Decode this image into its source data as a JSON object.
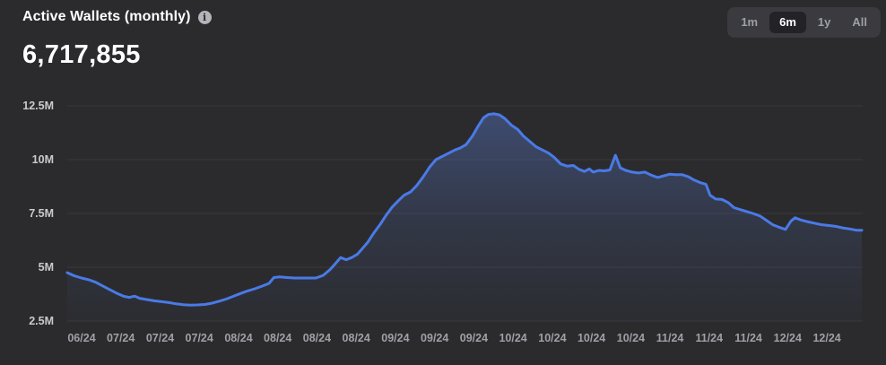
{
  "header": {
    "title": "Active Wallets (monthly)",
    "value": "6,717,855"
  },
  "range_selector": {
    "options": [
      {
        "label": "1m",
        "active": false
      },
      {
        "label": "6m",
        "active": true
      },
      {
        "label": "1y",
        "active": false
      },
      {
        "label": "All",
        "active": false
      }
    ]
  },
  "colors": {
    "background": "#2b2b2e",
    "line": "#4a7ae6",
    "fill_top": "rgba(86,118,196,0.45)",
    "fill_mid": "rgba(86,118,196,0.16)",
    "fill_bottom": "rgba(86,118,196,0.02)",
    "gridline": "#38383c",
    "y_label": "#cacace",
    "x_label": "#9fa0a6"
  },
  "chart_data": {
    "type": "area",
    "title": "Active Wallets (monthly)",
    "current_value": 6717855,
    "unit": "wallets",
    "grid": "horizontal",
    "legend": "none",
    "ylim_millions": [
      2.5,
      12.5
    ],
    "y_ticks_millions": [
      2.5,
      5,
      7.5,
      10,
      12.5
    ],
    "y_tick_labels": [
      "2.5M",
      "5M",
      "7.5M",
      "10M",
      "12.5M"
    ],
    "x_tick_labels": [
      "06/24",
      "07/24",
      "07/24",
      "07/24",
      "08/24",
      "08/24",
      "08/24",
      "08/24",
      "09/24",
      "09/24",
      "09/24",
      "10/24",
      "10/24",
      "10/24",
      "10/24",
      "11/24",
      "11/24",
      "11/24",
      "12/24",
      "12/24"
    ],
    "series": [
      {
        "name": "Active Wallets",
        "points_t_value_millions": [
          [
            0,
            4.75
          ],
          [
            0.009,
            4.6
          ],
          [
            0.018,
            4.5
          ],
          [
            0.027,
            4.42
          ],
          [
            0.036,
            4.3
          ],
          [
            0.045,
            4.12
          ],
          [
            0.054,
            3.95
          ],
          [
            0.063,
            3.78
          ],
          [
            0.071,
            3.65
          ],
          [
            0.078,
            3.6
          ],
          [
            0.085,
            3.66
          ],
          [
            0.091,
            3.56
          ],
          [
            0.1,
            3.5
          ],
          [
            0.109,
            3.44
          ],
          [
            0.119,
            3.4
          ],
          [
            0.128,
            3.36
          ],
          [
            0.137,
            3.3
          ],
          [
            0.146,
            3.26
          ],
          [
            0.155,
            3.24
          ],
          [
            0.164,
            3.25
          ],
          [
            0.173,
            3.27
          ],
          [
            0.182,
            3.33
          ],
          [
            0.191,
            3.42
          ],
          [
            0.2,
            3.52
          ],
          [
            0.209,
            3.65
          ],
          [
            0.218,
            3.78
          ],
          [
            0.227,
            3.9
          ],
          [
            0.236,
            4.0
          ],
          [
            0.245,
            4.12
          ],
          [
            0.254,
            4.25
          ],
          [
            0.26,
            4.52
          ],
          [
            0.267,
            4.55
          ],
          [
            0.277,
            4.52
          ],
          [
            0.286,
            4.5
          ],
          [
            0.295,
            4.5
          ],
          [
            0.304,
            4.5
          ],
          [
            0.313,
            4.5
          ],
          [
            0.322,
            4.62
          ],
          [
            0.331,
            4.9
          ],
          [
            0.337,
            5.15
          ],
          [
            0.344,
            5.45
          ],
          [
            0.351,
            5.35
          ],
          [
            0.358,
            5.45
          ],
          [
            0.365,
            5.6
          ],
          [
            0.371,
            5.85
          ],
          [
            0.378,
            6.15
          ],
          [
            0.386,
            6.6
          ],
          [
            0.394,
            7.0
          ],
          [
            0.401,
            7.4
          ],
          [
            0.409,
            7.8
          ],
          [
            0.417,
            8.1
          ],
          [
            0.424,
            8.35
          ],
          [
            0.432,
            8.5
          ],
          [
            0.44,
            8.8
          ],
          [
            0.448,
            9.2
          ],
          [
            0.456,
            9.65
          ],
          [
            0.464,
            10.0
          ],
          [
            0.472,
            10.15
          ],
          [
            0.48,
            10.3
          ],
          [
            0.488,
            10.45
          ],
          [
            0.495,
            10.55
          ],
          [
            0.502,
            10.7
          ],
          [
            0.51,
            11.1
          ],
          [
            0.517,
            11.55
          ],
          [
            0.524,
            11.95
          ],
          [
            0.53,
            12.1
          ],
          [
            0.537,
            12.13
          ],
          [
            0.544,
            12.08
          ],
          [
            0.551,
            11.9
          ],
          [
            0.559,
            11.6
          ],
          [
            0.567,
            11.4
          ],
          [
            0.574,
            11.1
          ],
          [
            0.582,
            10.85
          ],
          [
            0.59,
            10.6
          ],
          [
            0.598,
            10.45
          ],
          [
            0.606,
            10.3
          ],
          [
            0.613,
            10.1
          ],
          [
            0.621,
            9.8
          ],
          [
            0.629,
            9.7
          ],
          [
            0.637,
            9.73
          ],
          [
            0.644,
            9.55
          ],
          [
            0.651,
            9.45
          ],
          [
            0.657,
            9.57
          ],
          [
            0.662,
            9.42
          ],
          [
            0.669,
            9.5
          ],
          [
            0.676,
            9.48
          ],
          [
            0.683,
            9.52
          ],
          [
            0.69,
            10.2
          ],
          [
            0.696,
            9.62
          ],
          [
            0.703,
            9.5
          ],
          [
            0.711,
            9.42
          ],
          [
            0.719,
            9.38
          ],
          [
            0.727,
            9.42
          ],
          [
            0.735,
            9.28
          ],
          [
            0.743,
            9.17
          ],
          [
            0.751,
            9.25
          ],
          [
            0.758,
            9.32
          ],
          [
            0.766,
            9.3
          ],
          [
            0.774,
            9.3
          ],
          [
            0.782,
            9.2
          ],
          [
            0.789,
            9.05
          ],
          [
            0.797,
            8.93
          ],
          [
            0.804,
            8.85
          ],
          [
            0.809,
            8.35
          ],
          [
            0.816,
            8.17
          ],
          [
            0.824,
            8.15
          ],
          [
            0.832,
            8.0
          ],
          [
            0.839,
            7.77
          ],
          [
            0.847,
            7.68
          ],
          [
            0.854,
            7.6
          ],
          [
            0.863,
            7.5
          ],
          [
            0.872,
            7.38
          ],
          [
            0.88,
            7.18
          ],
          [
            0.888,
            6.97
          ],
          [
            0.896,
            6.86
          ],
          [
            0.904,
            6.76
          ],
          [
            0.911,
            7.15
          ],
          [
            0.916,
            7.3
          ],
          [
            0.923,
            7.2
          ],
          [
            0.931,
            7.12
          ],
          [
            0.94,
            7.05
          ],
          [
            0.949,
            6.98
          ],
          [
            0.958,
            6.94
          ],
          [
            0.967,
            6.9
          ],
          [
            0.976,
            6.83
          ],
          [
            0.985,
            6.78
          ],
          [
            0.993,
            6.72
          ],
          [
            1,
            6.72
          ]
        ]
      }
    ]
  }
}
